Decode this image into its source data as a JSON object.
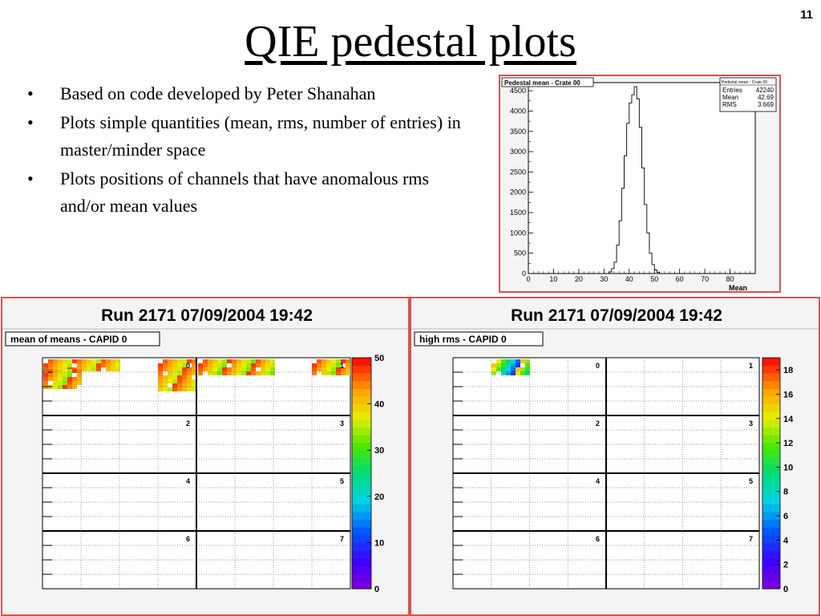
{
  "slide": {
    "number": "11",
    "title": "QIE pedestal plots",
    "bullets": [
      "Based on code developed by Peter Shanahan",
      "Plots simple quantities (mean, rms, number of entries) in master/minder space",
      "Plots positions of channels that have anomalous rms and/or mean values"
    ]
  },
  "colors": {
    "panel_border": "#d9534f",
    "histogram_line": "#000000"
  },
  "chart_data": [
    {
      "type": "bar",
      "title": "Pedestal mean - Crate 00",
      "xlabel": "Mean",
      "ylabel": "",
      "xlim": [
        0,
        90
      ],
      "ylim": [
        0,
        4700
      ],
      "x_ticks": [
        0,
        10,
        20,
        30,
        40,
        50,
        60,
        70,
        80
      ],
      "y_ticks": [
        0,
        500,
        1000,
        1500,
        2000,
        2500,
        3000,
        3500,
        4000,
        4500
      ],
      "stats": {
        "title": "Pedestal mean - Crate 00",
        "rows": [
          {
            "label": "Entries",
            "value": "42240"
          },
          {
            "label": "Mean",
            "value": "42.69"
          },
          {
            "label": "RMS",
            "value": "3.669"
          }
        ]
      },
      "bin_width": 1,
      "bins": [
        {
          "x": 32,
          "y": 40
        },
        {
          "x": 33,
          "y": 120
        },
        {
          "x": 34,
          "y": 280
        },
        {
          "x": 35,
          "y": 700
        },
        {
          "x": 36,
          "y": 1300
        },
        {
          "x": 37,
          "y": 2100
        },
        {
          "x": 38,
          "y": 2900
        },
        {
          "x": 39,
          "y": 3700
        },
        {
          "x": 40,
          "y": 4200
        },
        {
          "x": 41,
          "y": 4400
        },
        {
          "x": 42,
          "y": 4600
        },
        {
          "x": 43,
          "y": 4300
        },
        {
          "x": 44,
          "y": 3600
        },
        {
          "x": 45,
          "y": 2600
        },
        {
          "x": 46,
          "y": 1700
        },
        {
          "x": 47,
          "y": 1000
        },
        {
          "x": 48,
          "y": 500
        },
        {
          "x": 49,
          "y": 220
        },
        {
          "x": 50,
          "y": 90
        },
        {
          "x": 51,
          "y": 30
        }
      ]
    },
    {
      "type": "heatmap",
      "header": "Run 2171  07/09/2004  19:42",
      "title": "mean of means - CAPID 0",
      "quadrant_labels": [
        "0",
        "1",
        "2",
        "3",
        "4",
        "5",
        "6",
        "7"
      ],
      "colorbar_ticks": [
        0,
        10,
        20,
        30,
        40,
        50
      ],
      "zlim": [
        0,
        50
      ],
      "hot_regions": [
        {
          "quadrant": "0",
          "side": "left",
          "coverage": "upper rows"
        },
        {
          "quadrant": "0",
          "side": "right",
          "coverage": "upper rows"
        },
        {
          "quadrant": "1",
          "side": "left",
          "coverage": "upper rows"
        },
        {
          "quadrant": "1",
          "side": "right",
          "coverage": "top-right corner"
        }
      ]
    },
    {
      "type": "heatmap",
      "header": "Run 2171  07/09/2004  19:42",
      "title": "high rms - CAPID 0",
      "quadrant_labels": [
        "0",
        "1",
        "2",
        "3",
        "4",
        "5",
        "6",
        "7"
      ],
      "colorbar_ticks": [
        0,
        2,
        4,
        6,
        8,
        10,
        12,
        14,
        16,
        18
      ],
      "zlim": [
        0,
        19
      ],
      "hot_regions": [
        {
          "quadrant": "0",
          "side": "left",
          "coverage": "small patch near top"
        }
      ]
    }
  ]
}
